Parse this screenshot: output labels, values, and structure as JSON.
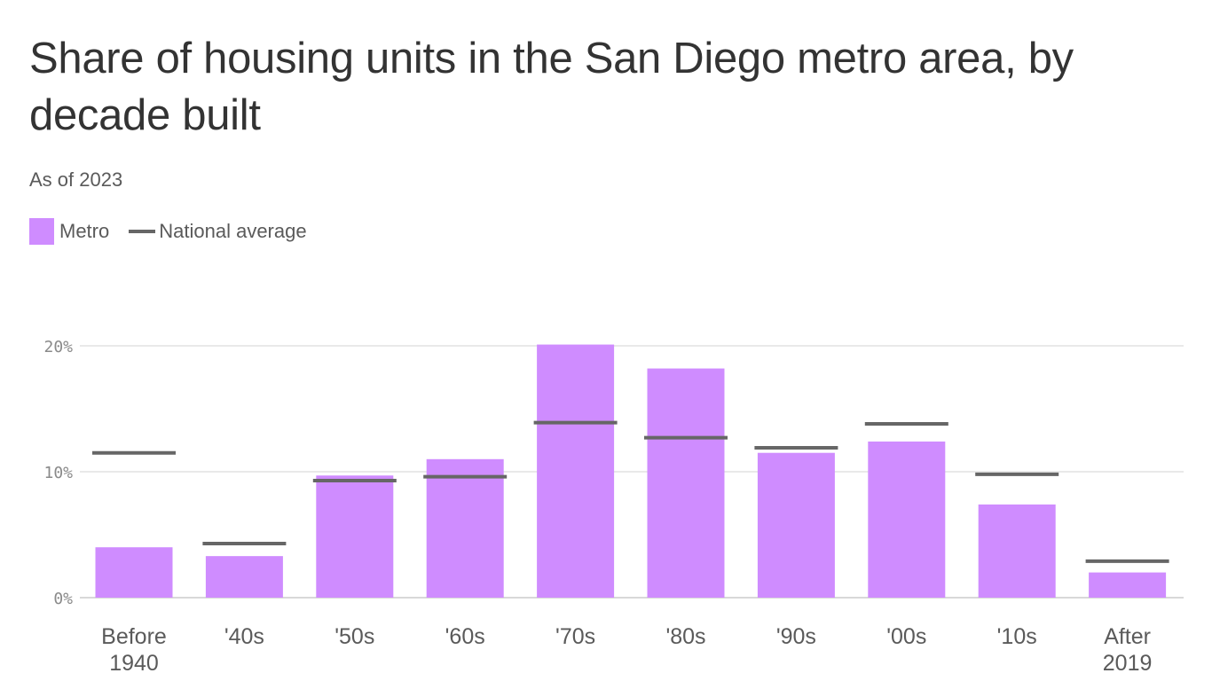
{
  "chart_data": {
    "type": "bar",
    "title": "Share of housing units in the San Diego metro area, by decade built",
    "subtitle": "As of 2023",
    "legend": {
      "metro": "Metro",
      "national": "National average",
      "placement": "top-left"
    },
    "categories": [
      [
        "Before",
        "1940"
      ],
      [
        "'40s"
      ],
      [
        "'50s"
      ],
      [
        "'60s"
      ],
      [
        "'70s"
      ],
      [
        "'80s"
      ],
      [
        "'90s"
      ],
      [
        "'00s"
      ],
      [
        "'10s"
      ],
      [
        "After",
        "2019"
      ]
    ],
    "series": [
      {
        "name": "Metro",
        "values": [
          4.0,
          3.3,
          9.7,
          11.0,
          20.1,
          18.2,
          11.5,
          12.4,
          7.4,
          2.0
        ]
      },
      {
        "name": "National average",
        "values": [
          11.5,
          4.3,
          9.3,
          9.6,
          13.9,
          12.7,
          11.9,
          13.8,
          9.8,
          2.9
        ]
      }
    ],
    "yticks": [
      {
        "value": 0,
        "label": "0%"
      },
      {
        "value": 10,
        "label": "10%"
      },
      {
        "value": 20,
        "label": "20%"
      }
    ],
    "ylim": [
      0,
      20
    ],
    "colors": {
      "metro": "#cf8cff",
      "national": "#666666",
      "grid": "#e2e2e2"
    }
  }
}
